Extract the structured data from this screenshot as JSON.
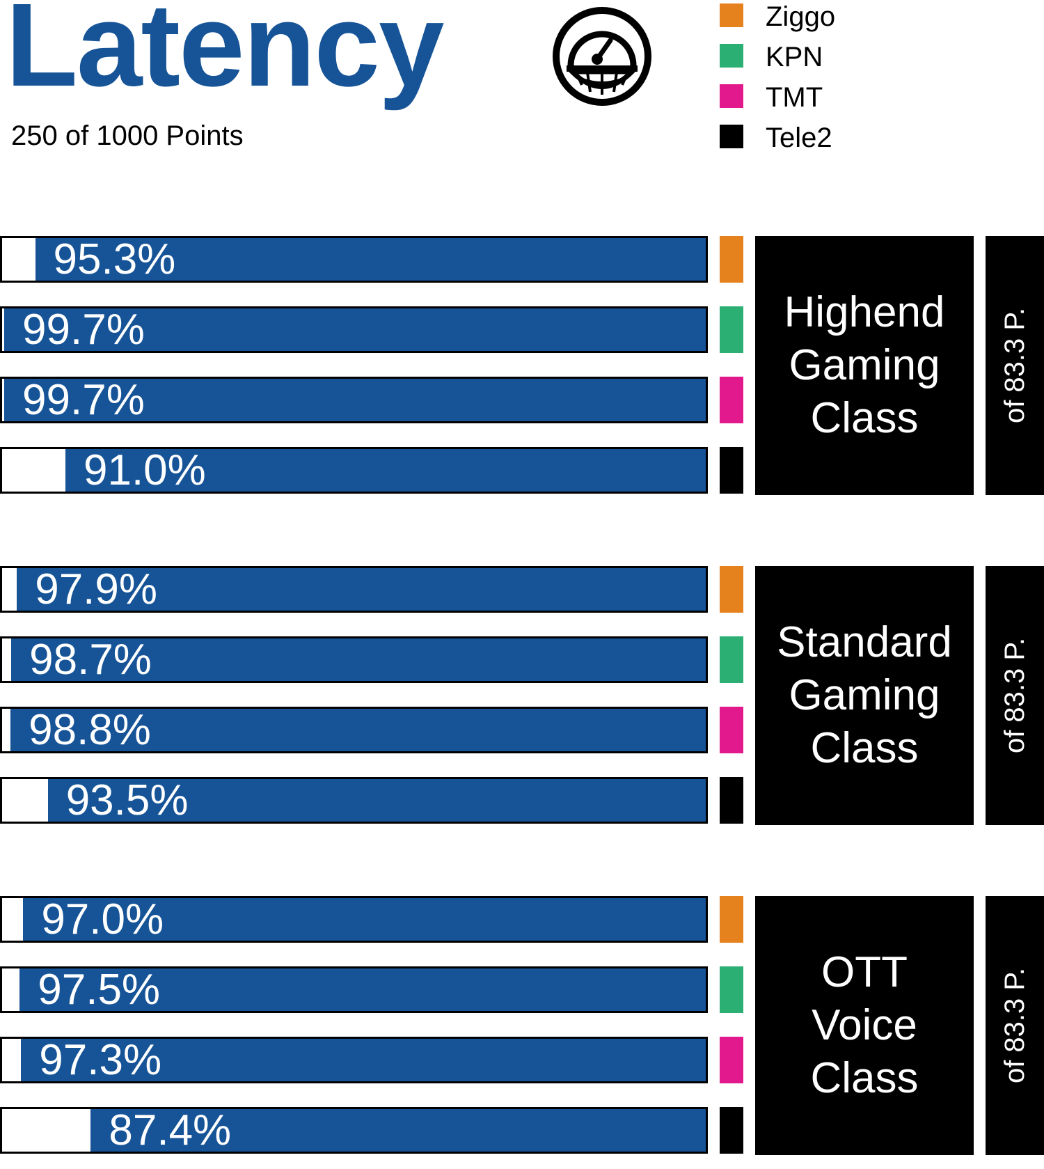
{
  "header": {
    "title": "Latency",
    "subtitle": "250 of 1000 Points",
    "icon": "speedometer-icon"
  },
  "legend": [
    {
      "label": "Ziggo",
      "color": "#E6821E"
    },
    {
      "label": "KPN",
      "color": "#2BAF72"
    },
    {
      "label": "TMT",
      "color": "#E2198C"
    },
    {
      "label": "Tele2",
      "color": "#000000"
    }
  ],
  "colors": {
    "bar": "#165497",
    "remainder": "#ffffff"
  },
  "chart_data": {
    "type": "bar",
    "orientation": "horizontal",
    "xlim": [
      0,
      100
    ],
    "unit": "%",
    "series_order": [
      "Ziggo",
      "KPN",
      "TMT",
      "Tele2"
    ],
    "groups": [
      {
        "label": "Highend\nGaming\nClass",
        "points_label": "of 83.3 P.",
        "bars": [
          {
            "operator": "Ziggo",
            "value": 95.3,
            "label": "95.3%"
          },
          {
            "operator": "KPN",
            "value": 99.7,
            "label": "99.7%"
          },
          {
            "operator": "TMT",
            "value": 99.7,
            "label": "99.7%"
          },
          {
            "operator": "Tele2",
            "value": 91.0,
            "label": "91.0%"
          }
        ]
      },
      {
        "label": "Standard\nGaming\nClass",
        "points_label": "of 83.3 P.",
        "bars": [
          {
            "operator": "Ziggo",
            "value": 97.9,
            "label": "97.9%"
          },
          {
            "operator": "KPN",
            "value": 98.7,
            "label": "98.7%"
          },
          {
            "operator": "TMT",
            "value": 98.8,
            "label": "98.8%"
          },
          {
            "operator": "Tele2",
            "value": 93.5,
            "label": "93.5%"
          }
        ]
      },
      {
        "label": "OTT\nVoice\nClass",
        "points_label": "of 83.3 P.",
        "bars": [
          {
            "operator": "Ziggo",
            "value": 97.0,
            "label": "97.0%"
          },
          {
            "operator": "KPN",
            "value": 97.5,
            "label": "97.5%"
          },
          {
            "operator": "TMT",
            "value": 97.3,
            "label": "97.3%"
          },
          {
            "operator": "Tele2",
            "value": 87.4,
            "label": "87.4%"
          }
        ]
      }
    ]
  }
}
